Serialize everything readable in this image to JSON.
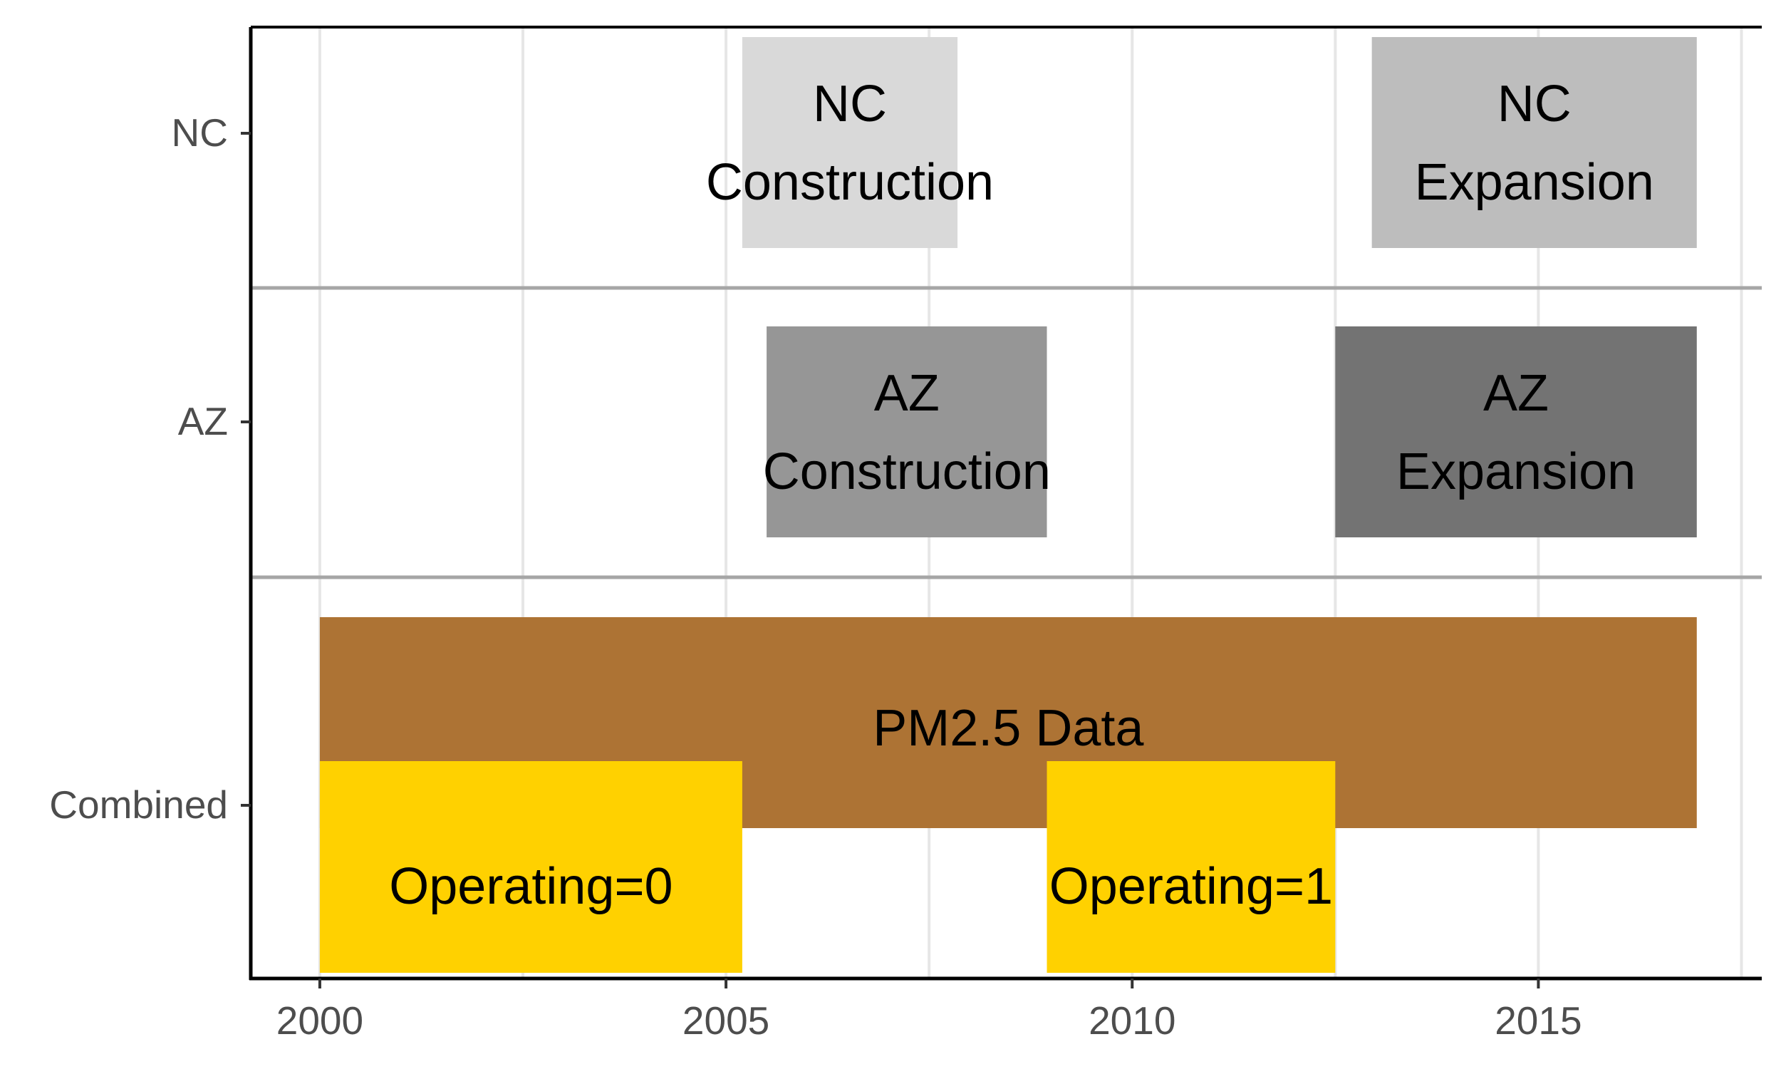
{
  "chart_data": {
    "type": "gantt",
    "title": "",
    "xlabel": "",
    "ylabel": "",
    "xlim": [
      1999.15,
      2017.75
    ],
    "x_ticks": [
      2000,
      2005,
      2010,
      2015
    ],
    "rows": [
      "NC",
      "AZ",
      "Combined"
    ],
    "grid": true,
    "bars": [
      {
        "row": "NC",
        "label_lines": [
          "NC",
          "Construction"
        ],
        "start": 2005.2,
        "end": 2007.85,
        "color": "#d9d9d9"
      },
      {
        "row": "NC",
        "label_lines": [
          "NC",
          "Expansion"
        ],
        "start": 2012.95,
        "end": 2016.95,
        "color": "#bdbdbd"
      },
      {
        "row": "AZ",
        "label_lines": [
          "AZ",
          "Construction"
        ],
        "start": 2005.5,
        "end": 2008.95,
        "color": "#969696"
      },
      {
        "row": "AZ",
        "label_lines": [
          "AZ",
          "Expansion"
        ],
        "start": 2012.5,
        "end": 2016.95,
        "color": "#737373"
      },
      {
        "row": "Combined",
        "label_lines": [
          "PM2.5 Data"
        ],
        "start": 2000.0,
        "end": 2016.95,
        "color": "#ad7334",
        "level": "upper"
      },
      {
        "row": "Combined",
        "label_lines": [
          "Operating=0"
        ],
        "start": 2000.0,
        "end": 2005.2,
        "color": "#ffd100",
        "level": "lower"
      },
      {
        "row": "Combined",
        "label_lines": [
          "Operating=1"
        ],
        "start": 2008.95,
        "end": 2012.5,
        "color": "#ffd100",
        "level": "lower"
      }
    ]
  }
}
